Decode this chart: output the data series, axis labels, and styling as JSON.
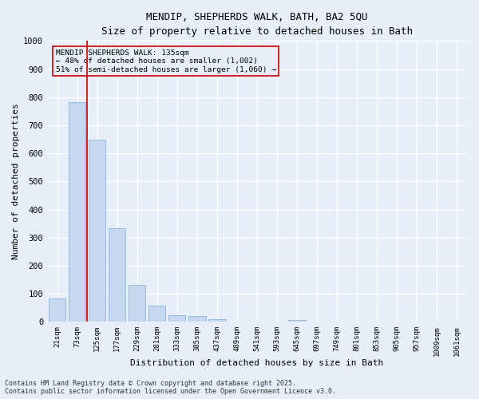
{
  "title": "MENDIP, SHEPHERDS WALK, BATH, BA2 5QU",
  "subtitle": "Size of property relative to detached houses in Bath",
  "xlabel": "Distribution of detached houses by size in Bath",
  "ylabel": "Number of detached properties",
  "categories": [
    "21sqm",
    "73sqm",
    "125sqm",
    "177sqm",
    "229sqm",
    "281sqm",
    "333sqm",
    "385sqm",
    "437sqm",
    "489sqm",
    "541sqm",
    "593sqm",
    "645sqm",
    "697sqm",
    "749sqm",
    "801sqm",
    "853sqm",
    "905sqm",
    "957sqm",
    "1009sqm",
    "1061sqm"
  ],
  "values": [
    83,
    783,
    648,
    333,
    133,
    58,
    25,
    20,
    10,
    0,
    0,
    0,
    8,
    0,
    0,
    0,
    0,
    0,
    0,
    0,
    0
  ],
  "bar_color": "#c5d8f0",
  "bar_edge_color": "#7aadd4",
  "vline_color": "#cc0000",
  "annotation_box_color": "#cc0000",
  "ylim": [
    0,
    1000
  ],
  "yticks": [
    0,
    100,
    200,
    300,
    400,
    500,
    600,
    700,
    800,
    900,
    1000
  ],
  "footer_line1": "Contains HM Land Registry data © Crown copyright and database right 2025.",
  "footer_line2": "Contains public sector information licensed under the Open Government Licence v3.0.",
  "bg_color": "#e8eef8",
  "grid_color": "#ffffff"
}
